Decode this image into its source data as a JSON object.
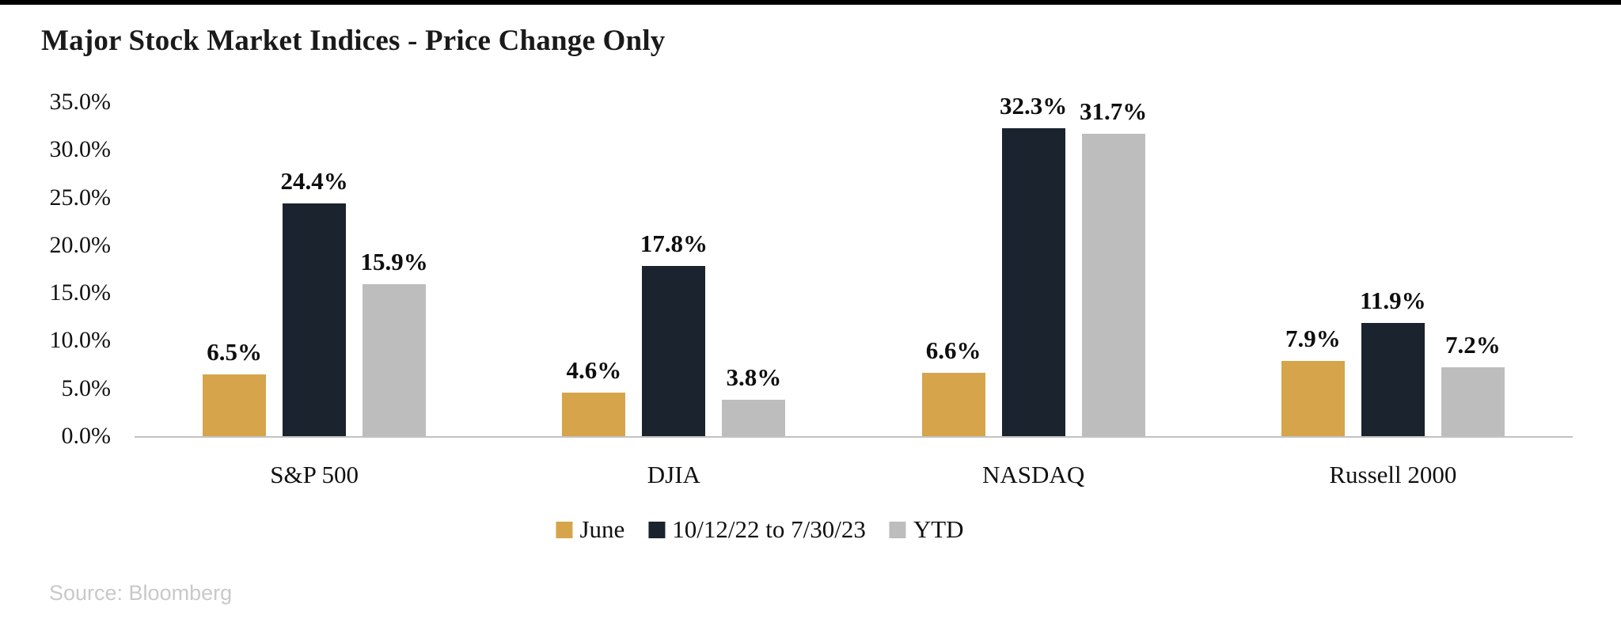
{
  "page": {
    "background_color": "#ffffff",
    "top_rule_color": "#000000"
  },
  "title": "Major Stock Market Indices - Price Change Only",
  "source_note": "Source: Bloomberg",
  "chart_data": {
    "type": "bar",
    "title": "Major Stock Market Indices - Price Change Only",
    "categories": [
      "S&P 500",
      "DJIA",
      "NASDAQ",
      "Russell 2000"
    ],
    "series": [
      {
        "name": "June",
        "color": "#d6a44a",
        "values": [
          6.5,
          4.6,
          6.6,
          7.9
        ]
      },
      {
        "name": "10/12/22 to 7/30/23",
        "color": "#1a232e",
        "values": [
          24.4,
          17.8,
          32.3,
          11.9
        ]
      },
      {
        "name": "YTD",
        "color": "#bdbdbd",
        "values": [
          15.9,
          3.8,
          31.7,
          7.2
        ]
      }
    ],
    "value_labels": [
      [
        "6.5%",
        "4.6%",
        "6.6%",
        "7.9%"
      ],
      [
        "24.4%",
        "17.8%",
        "32.3%",
        "11.9%"
      ],
      [
        "15.9%",
        "3.8%",
        "31.7%",
        "7.2%"
      ]
    ],
    "xlabel": "",
    "ylabel": "",
    "ylim": [
      0,
      35
    ],
    "yticks": [
      "0.0%",
      "5.0%",
      "10.0%",
      "15.0%",
      "20.0%",
      "25.0%",
      "30.0%",
      "35.0%"
    ],
    "ytick_values": [
      0,
      5,
      10,
      15,
      20,
      25,
      30,
      35
    ],
    "grid": false,
    "legend_position": "bottom",
    "axis_line_color": "#c2c2c2"
  }
}
